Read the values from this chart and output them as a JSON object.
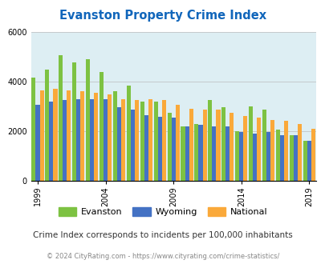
{
  "title": "Evanston Property Crime Index",
  "subtitle": "Crime Index corresponds to incidents per 100,000 inhabitants",
  "footer": "© 2024 CityRating.com - https://www.cityrating.com/crime-statistics/",
  "years": [
    1999,
    2000,
    2001,
    2002,
    2003,
    2004,
    2005,
    2006,
    2007,
    2008,
    2009,
    2010,
    2011,
    2012,
    2013,
    2014,
    2015,
    2016,
    2017,
    2018,
    2019
  ],
  "evanston": [
    4150,
    4480,
    5050,
    4750,
    4900,
    4380,
    3600,
    3820,
    3200,
    3200,
    2750,
    2200,
    2300,
    3250,
    2950,
    2000,
    3000,
    2850,
    2050,
    1850,
    1600
  ],
  "wyoming": [
    3050,
    3200,
    3250,
    3300,
    3300,
    3300,
    2950,
    2850,
    2650,
    2580,
    2550,
    2200,
    2250,
    2200,
    2200,
    1980,
    1900,
    1980,
    1850,
    1820,
    1600
  ],
  "national": [
    3650,
    3700,
    3650,
    3600,
    3550,
    3480,
    3300,
    3250,
    3300,
    3250,
    3050,
    2900,
    2880,
    2850,
    2750,
    2600,
    2550,
    2450,
    2400,
    2300,
    2100
  ],
  "evanston_color": "#7dc242",
  "wyoming_color": "#4472c4",
  "national_color": "#faa93a",
  "bg_color": "#ddeef3",
  "ylim": [
    0,
    6000
  ],
  "title_color": "#1166bb",
  "subtitle_color": "#333333",
  "footer_color": "#888888",
  "grid_color": "#bbbbbb",
  "tick_years": [
    1999,
    2004,
    2009,
    2014,
    2019
  ]
}
